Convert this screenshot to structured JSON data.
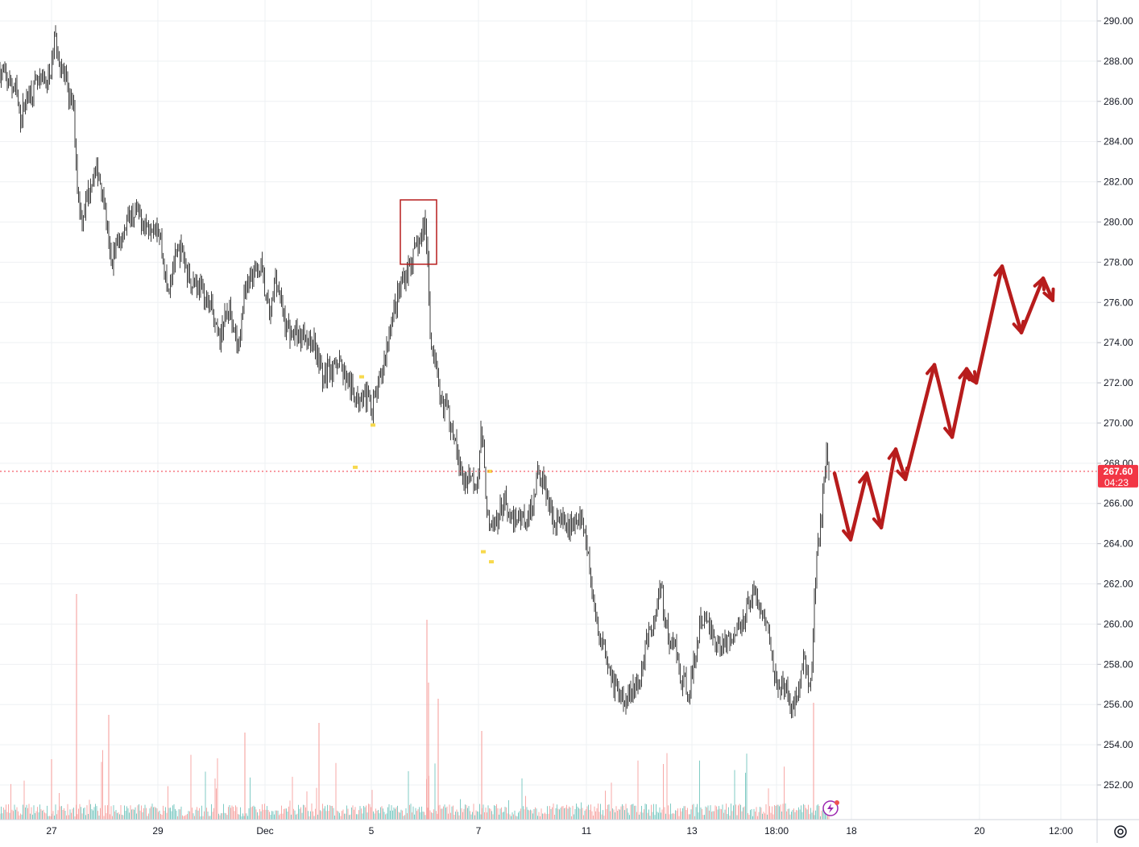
{
  "colors": {
    "up": "#26a69a",
    "down": "#ef5350",
    "candle_body": "#2a2a2a",
    "grid": "#eef0f3",
    "axis_text": "#131722",
    "price_label_bg": "#f23645",
    "annotation_red": "#b71c1c",
    "signal_yellow": "#f5d020",
    "lightning_purple": "#9c27b0"
  },
  "chart_data": {
    "type": "candlestick",
    "ylim": [
      249.8,
      291.0
    ],
    "yticks": [
      "290.00",
      "288.00",
      "286.00",
      "284.00",
      "282.00",
      "280.00",
      "278.00",
      "276.00",
      "274.00",
      "272.00",
      "270.00",
      "268.00",
      "266.00",
      "264.00",
      "262.00",
      "260.00",
      "258.00",
      "256.00",
      "254.00",
      "252.00"
    ],
    "xticks": [
      "27",
      "29",
      "Dec",
      "5",
      "7",
      "11",
      "13",
      "18:00",
      "18",
      "20",
      "12:00"
    ],
    "last_price": "267.60",
    "countdown": "04:23",
    "grid": true,
    "price_path": [
      [
        0,
        287.5
      ],
      [
        10,
        287.0
      ],
      [
        20,
        286.5
      ],
      [
        25,
        285.2
      ],
      [
        35,
        286.4
      ],
      [
        45,
        286.8
      ],
      [
        55,
        287.0
      ],
      [
        62,
        287.2
      ],
      [
        68,
        289.2
      ],
      [
        72,
        288.5
      ],
      [
        78,
        287.5
      ],
      [
        85,
        286.3
      ],
      [
        92,
        285.5
      ],
      [
        95,
        282.5
      ],
      [
        98,
        281.0
      ],
      [
        102,
        280.2
      ],
      [
        108,
        281.2
      ],
      [
        115,
        282.3
      ],
      [
        122,
        282.5
      ],
      [
        128,
        281.5
      ],
      [
        133,
        279.5
      ],
      [
        138,
        277.9
      ],
      [
        142,
        278.6
      ],
      [
        148,
        279.0
      ],
      [
        155,
        279.8
      ],
      [
        162,
        280.3
      ],
      [
        170,
        280.5
      ],
      [
        178,
        280.0
      ],
      [
        185,
        279.8
      ],
      [
        192,
        280.1
      ],
      [
        198,
        279.5
      ],
      [
        203,
        278.0
      ],
      [
        208,
        276.5
      ],
      [
        214,
        277.8
      ],
      [
        220,
        278.3
      ],
      [
        226,
        278.6
      ],
      [
        232,
        277.5
      ],
      [
        240,
        277.0
      ],
      [
        248,
        276.8
      ],
      [
        255,
        276.2
      ],
      [
        262,
        275.8
      ],
      [
        268,
        274.5
      ],
      [
        272,
        274.2
      ],
      [
        278,
        275.0
      ],
      [
        285,
        275.8
      ],
      [
        290,
        275.0
      ],
      [
        296,
        273.5
      ],
      [
        300,
        275.5
      ],
      [
        306,
        276.8
      ],
      [
        312,
        277.6
      ],
      [
        318,
        277.4
      ],
      [
        324,
        277.8
      ],
      [
        330,
        276.2
      ],
      [
        336,
        275.3
      ],
      [
        342,
        277.5
      ],
      [
        348,
        276.2
      ],
      [
        354,
        275.0
      ],
      [
        360,
        274.5
      ],
      [
        366,
        274.5
      ],
      [
        372,
        274.2
      ],
      [
        378,
        274.6
      ],
      [
        384,
        274.0
      ],
      [
        390,
        274.1
      ],
      [
        396,
        273.2
      ],
      [
        402,
        272.0
      ],
      [
        408,
        273.0
      ],
      [
        414,
        272.5
      ],
      [
        420,
        273.3
      ],
      [
        426,
        272.6
      ],
      [
        432,
        272.0
      ],
      [
        438,
        271.5
      ],
      [
        444,
        271.0
      ],
      [
        450,
        271.7
      ],
      [
        456,
        271.3
      ],
      [
        462,
        270.8
      ],
      [
        468,
        271.5
      ],
      [
        474,
        272.5
      ],
      [
        480,
        273.8
      ],
      [
        486,
        275.2
      ],
      [
        492,
        276.0
      ],
      [
        498,
        276.9
      ],
      [
        504,
        277.5
      ],
      [
        510,
        278.0
      ],
      [
        516,
        278.6
      ],
      [
        522,
        279.0
      ],
      [
        528,
        280.0
      ],
      [
        531,
        278.0
      ],
      [
        534,
        274.5
      ],
      [
        538,
        273.5
      ],
      [
        542,
        272.5
      ],
      [
        546,
        271.0
      ],
      [
        552,
        271.0
      ],
      [
        558,
        270.2
      ],
      [
        564,
        269.5
      ],
      [
        570,
        267.8
      ],
      [
        576,
        267.0
      ],
      [
        582,
        267.5
      ],
      [
        588,
        267.2
      ],
      [
        593,
        267.3
      ],
      [
        597,
        269.5
      ],
      [
        600,
        268.5
      ],
      [
        604,
        266.0
      ],
      [
        608,
        264.5
      ],
      [
        614,
        265.0
      ],
      [
        620,
        265.5
      ],
      [
        626,
        266.2
      ],
      [
        632,
        265.0
      ],
      [
        638,
        265.2
      ],
      [
        644,
        265.4
      ],
      [
        650,
        265.3
      ],
      [
        656,
        265.2
      ],
      [
        662,
        266.2
      ],
      [
        668,
        267.5
      ],
      [
        674,
        267.2
      ],
      [
        680,
        266.3
      ],
      [
        686,
        265.2
      ],
      [
        692,
        265.3
      ],
      [
        698,
        265.0
      ],
      [
        704,
        264.8
      ],
      [
        710,
        265.0
      ],
      [
        716,
        265.1
      ],
      [
        722,
        265.2
      ],
      [
        726,
        264.6
      ],
      [
        730,
        263.5
      ],
      [
        734,
        262.0
      ],
      [
        738,
        260.5
      ],
      [
        744,
        259.5
      ],
      [
        750,
        258.8
      ],
      [
        756,
        258.0
      ],
      [
        762,
        257.0
      ],
      [
        768,
        256.5
      ],
      [
        774,
        256.2
      ],
      [
        780,
        256.5
      ],
      [
        786,
        257.0
      ],
      [
        792,
        256.8
      ],
      [
        798,
        258.0
      ],
      [
        804,
        259.5
      ],
      [
        810,
        259.8
      ],
      [
        816,
        261.0
      ],
      [
        820,
        262.0
      ],
      [
        826,
        260.2
      ],
      [
        832,
        258.8
      ],
      [
        838,
        259.2
      ],
      [
        844,
        257.2
      ],
      [
        850,
        257.0
      ],
      [
        856,
        256.8
      ],
      [
        862,
        258.0
      ],
      [
        868,
        259.8
      ],
      [
        874,
        260.3
      ],
      [
        880,
        260.0
      ],
      [
        886,
        259.2
      ],
      [
        892,
        258.9
      ],
      [
        898,
        259.0
      ],
      [
        904,
        259.2
      ],
      [
        910,
        259.4
      ],
      [
        916,
        259.7
      ],
      [
        922,
        260.2
      ],
      [
        928,
        261.0
      ],
      [
        934,
        261.8
      ],
      [
        940,
        261.2
      ],
      [
        946,
        260.5
      ],
      [
        952,
        260.0
      ],
      [
        958,
        258.5
      ],
      [
        964,
        257.2
      ],
      [
        970,
        257.0
      ],
      [
        976,
        256.5
      ],
      [
        982,
        256.0
      ],
      [
        988,
        256.3
      ],
      [
        994,
        257.2
      ],
      [
        998,
        258.4
      ],
      [
        1002,
        257.5
      ],
      [
        1006,
        256.5
      ],
      [
        1010,
        260.0
      ],
      [
        1014,
        263.5
      ],
      [
        1018,
        264.6
      ],
      [
        1022,
        266.5
      ],
      [
        1026,
        268.2
      ],
      [
        1030,
        267.6
      ]
    ],
    "annotation_box": {
      "x0": 497,
      "x1": 542,
      "y_top": 281.1,
      "y_bottom": 277.9
    },
    "forecast_zigzag": [
      [
        1036,
        267.5
      ],
      [
        1056,
        264.2
      ],
      [
        1076,
        267.5
      ],
      [
        1094,
        264.8
      ],
      [
        1112,
        268.7
      ],
      [
        1124,
        267.2
      ],
      [
        1160,
        272.9
      ],
      [
        1182,
        269.3
      ],
      [
        1200,
        272.7
      ],
      [
        1212,
        272.0
      ],
      [
        1244,
        277.8
      ],
      [
        1268,
        274.5
      ],
      [
        1295,
        277.2
      ],
      [
        1307,
        276.1
      ]
    ]
  }
}
